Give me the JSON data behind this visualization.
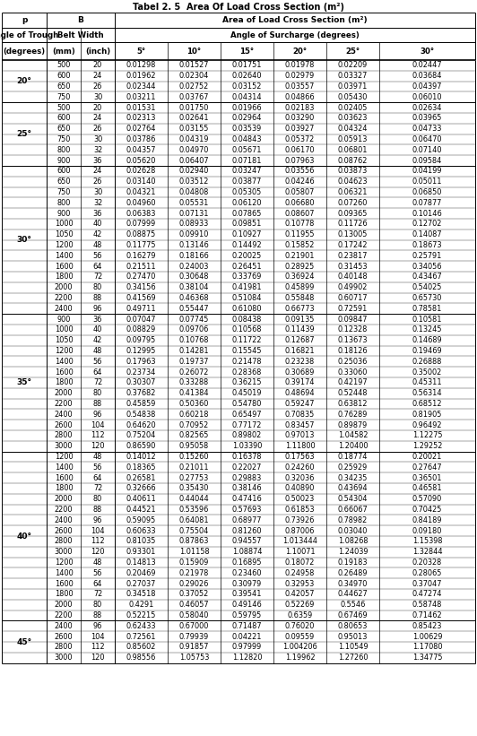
{
  "title": "Tabel 2. 5  Area Of Load Cross Section (m²)",
  "col_headers": [
    "(degrees)",
    "(mm)",
    "(inch)",
    "5°",
    "10°",
    "15°",
    "20°",
    "25°",
    "30°"
  ],
  "sections": [
    {
      "label": "20°",
      "rows": [
        [
          500,
          20,
          "0.01298",
          "0.01527",
          "0.01751",
          "0.01978",
          "0.02209",
          "0.02447"
        ],
        [
          600,
          24,
          "0.01962",
          "0.02304",
          "0.02640",
          "0.02979",
          "0.03327",
          "0.03684"
        ],
        [
          650,
          26,
          "0.02344",
          "0.02752",
          "0.03152",
          "0.03557",
          "0.03971",
          "0.04397"
        ],
        [
          750,
          30,
          "0.03211",
          "0.03767",
          "0.04314",
          "0.04866",
          "0.05430",
          "0.06010"
        ]
      ]
    },
    {
      "label": "25°",
      "rows": [
        [
          500,
          20,
          "0.01531",
          "0.01750",
          "0.01966",
          "0.02183",
          "0.02405",
          "0.02634"
        ],
        [
          600,
          24,
          "0.02313",
          "0.02641",
          "0.02964",
          "0.03290",
          "0.03623",
          "0.03965"
        ],
        [
          650,
          26,
          "0.02764",
          "0.03155",
          "0.03539",
          "0.03927",
          "0.04324",
          "0.04733"
        ],
        [
          750,
          30,
          "0.03786",
          "0.04319",
          "0.04843",
          "0.05372",
          "0.05913",
          "0.06470"
        ],
        [
          800,
          32,
          "0.04357",
          "0.04970",
          "0.05671",
          "0.06170",
          "0.06801",
          "0.07140"
        ],
        [
          900,
          36,
          "0.05620",
          "0.06407",
          "0.07181",
          "0.07963",
          "0.08762",
          "0.09584"
        ]
      ]
    },
    {
      "label": "30°",
      "rows": [
        [
          600,
          24,
          "0.02628",
          "0.02940",
          "0.03247",
          "0.03556",
          "0.03873",
          "0.04199"
        ],
        [
          650,
          26,
          "0.03140",
          "0.03512",
          "0.03877",
          "0.04246",
          "0.04623",
          "0.05011"
        ],
        [
          750,
          30,
          "0.04321",
          "0.04808",
          "0.05305",
          "0.05807",
          "0.06321",
          "0.06850"
        ],
        [
          800,
          32,
          "0.04960",
          "0.05531",
          "0.06120",
          "0.06680",
          "0.07260",
          "0.07877"
        ],
        [
          900,
          36,
          "0.06383",
          "0.07131",
          "0.07865",
          "0.08607",
          "0.09365",
          "0.10146"
        ],
        [
          1000,
          40,
          "0.07999",
          "0.08933",
          "0.09851",
          "0.10778",
          "0.11726",
          "0.12702"
        ],
        [
          1050,
          42,
          "0.08875",
          "0.09910",
          "0.10927",
          "0.11955",
          "0.13005",
          "0.14087"
        ],
        [
          1200,
          48,
          "0.11775",
          "0.13146",
          "0.14492",
          "0.15852",
          "0.17242",
          "0.18673"
        ],
        [
          1400,
          56,
          "0.16279",
          "0.18166",
          "0.20025",
          "0.21901",
          "0.23817",
          "0.25791"
        ],
        [
          1600,
          64,
          "0.21511",
          "0.24003",
          "0.26451",
          "0.28925",
          "0.31453",
          "0.34056"
        ],
        [
          1800,
          72,
          "0.27470",
          "0.30648",
          "0.33769",
          "0.36924",
          "0.40148",
          "0.43467"
        ],
        [
          2000,
          80,
          "0.34156",
          "0.38104",
          "0.41981",
          "0.45899",
          "0.49902",
          "0.54025"
        ],
        [
          2200,
          88,
          "0.41569",
          "0.46368",
          "0.51084",
          "0.55848",
          "0.60717",
          "0.65730"
        ],
        [
          2400,
          96,
          "0.49711",
          "0.55447",
          "0.61080",
          "0.66773",
          "0.72591",
          "0.78581"
        ]
      ]
    },
    {
      "label": "35°",
      "rows": [
        [
          900,
          36,
          "0.07047",
          "0.07745",
          "0.08438",
          "0.09135",
          "0.09847",
          "0.10581"
        ],
        [
          1000,
          40,
          "0.08829",
          "0.09706",
          "0.10568",
          "0.11439",
          "0.12328",
          "0.13245"
        ],
        [
          1050,
          42,
          "0.09795",
          "0.10768",
          "0.11722",
          "0.12687",
          "0.13673",
          "0.14689"
        ],
        [
          1200,
          48,
          "0.12995",
          "0.14281",
          "0.15545",
          "0.16821",
          "0.18126",
          "0.19469"
        ],
        [
          1400,
          56,
          "0.17963",
          "0.19737",
          "0.21478",
          "0.23238",
          "0.25036",
          "0.26888"
        ],
        [
          1600,
          64,
          "0.23734",
          "0.26072",
          "0.28368",
          "0.30689",
          "0.33060",
          "0.35002"
        ],
        [
          1800,
          72,
          "0.30307",
          "0.33288",
          "0.36215",
          "0.39174",
          "0.42197",
          "0.45311"
        ],
        [
          2000,
          80,
          "0.37682",
          "0.41384",
          "0.45019",
          "0.48694",
          "0.52448",
          "0.56314"
        ],
        [
          2200,
          88,
          "0.45859",
          "0.50360",
          "0.54780",
          "0.59247",
          "0.63812",
          "0.68512"
        ],
        [
          2400,
          96,
          "0.54838",
          "0.60218",
          "0.65497",
          "0.70835",
          "0.76289",
          "0.81905"
        ],
        [
          2600,
          104,
          "0.64620",
          "0.70952",
          "0.77172",
          "0.83457",
          "0.89879",
          "0.96492"
        ],
        [
          2800,
          112,
          "0.75204",
          "0.82565",
          "0.89802",
          "0.97013",
          "1.04582",
          "1.12275"
        ],
        [
          3000,
          120,
          "0.86590",
          "0.95058",
          "1.03390",
          "1.11800",
          "1.20400",
          "1.29252"
        ]
      ]
    },
    {
      "label": "40°",
      "rows": [
        [
          1200,
          48,
          "0.14012",
          "0.15260",
          "0.16378",
          "0.17563",
          "0.18774",
          "0.20021"
        ],
        [
          1400,
          56,
          "0.18365",
          "0.21011",
          "0.22027",
          "0.24260",
          "0.25929",
          "0.27647"
        ],
        [
          1600,
          64,
          "0.26581",
          "0.27753",
          "0.29883",
          "0.32036",
          "0.34235",
          "0.36501"
        ],
        [
          1800,
          72,
          "0.32666",
          "0.35430",
          "0.38146",
          "0.40890",
          "0.43694",
          "0.46581"
        ],
        [
          2000,
          80,
          "0.40611",
          "0.44044",
          "0.47416",
          "0.50023",
          "0.54304",
          "0.57090"
        ],
        [
          2200,
          88,
          "0.44521",
          "0.53596",
          "0.57693",
          "0.61853",
          "0.66067",
          "0.70425"
        ],
        [
          2400,
          96,
          "0.59095",
          "0.64081",
          "0.68977",
          "0.73926",
          "0.78982",
          "0.84189"
        ],
        [
          2600,
          104,
          "0.60633",
          "0.75504",
          "0.81260",
          "0.87006",
          "0.03040",
          "0.09180"
        ],
        [
          2800,
          112,
          "0.81035",
          "0.87863",
          "0.94557",
          "1.013444",
          "1.08268",
          "1.15398"
        ],
        [
          3000,
          120,
          "0.93301",
          "1.01158",
          "1.08874",
          "1.10071",
          "1.24039",
          "1.32844"
        ],
        [
          1200,
          48,
          "0.14813",
          "0.15909",
          "0.16895",
          "0.18072",
          "0.19183",
          "0.20328"
        ],
        [
          1400,
          56,
          "0.20469",
          "0.21978",
          "0.23460",
          "0.24958",
          "0.26489",
          "0.28065"
        ],
        [
          1600,
          64,
          "0.27037",
          "0.29026",
          "0.30979",
          "0.32953",
          "0.34970",
          "0.37047"
        ],
        [
          1800,
          72,
          "0.34518",
          "0.37052",
          "0.39541",
          "0.42057",
          "0.44627",
          "0.47274"
        ],
        [
          2000,
          80,
          "0.4291",
          "0.46057",
          "0.49146",
          "0.52269",
          "0.5546",
          "0.58748"
        ],
        [
          2200,
          88,
          "0.52215",
          "0.58040",
          "0.59795",
          "0.6359",
          "0.67469",
          "0.71462"
        ]
      ]
    },
    {
      "label": "45°",
      "rows": [
        [
          2400,
          96,
          "0.62433",
          "0.67000",
          "0.71487",
          "0.76020",
          "0.80653",
          "0.85423"
        ],
        [
          2600,
          104,
          "0.72561",
          "0.79939",
          "0.04221",
          "0.09559",
          "0.95013",
          "1.00629"
        ],
        [
          2800,
          112,
          "0.85602",
          "0.91857",
          "0.97999",
          "1.004206",
          "1.10549",
          "1.17080"
        ],
        [
          3000,
          120,
          "0.98556",
          "1.05753",
          "1.12820",
          "1.19962",
          "1.27260",
          "1.34775"
        ]
      ]
    }
  ]
}
